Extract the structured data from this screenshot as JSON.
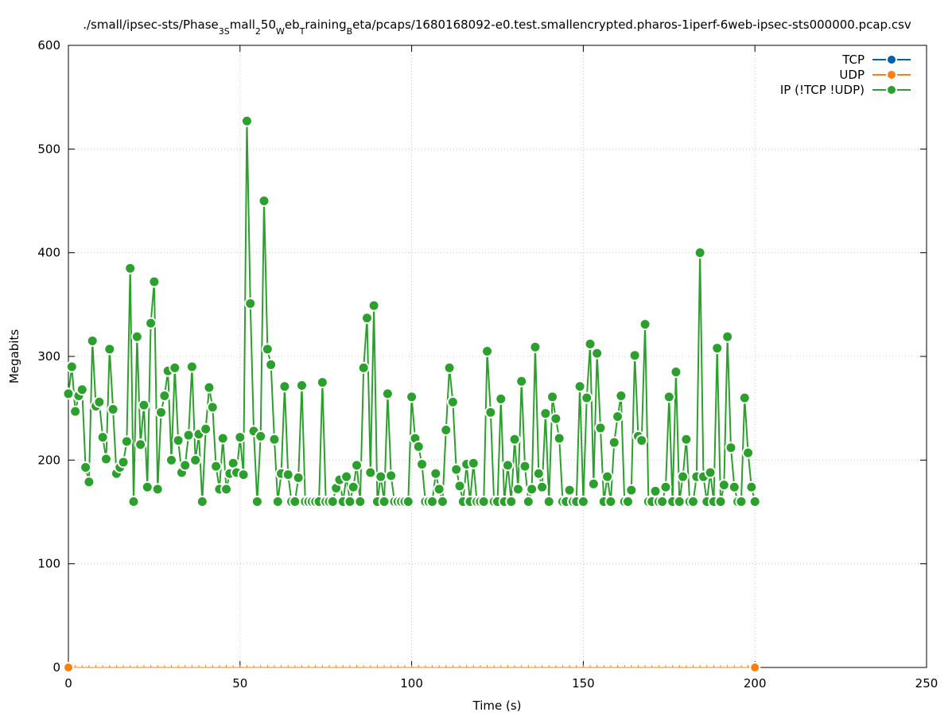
{
  "chart_data": {
    "type": "line",
    "title": "./small/ipsec-sts/Phase_3Small_250_Web_Training_Beta/pcaps/1680168092-e0.test.smallencrypted.pharos-1iperf-6web-ipsec-sts000000.pcap.csv",
    "title_parts": [
      {
        "t": "./small/ipsec-sts/Phase"
      },
      {
        "t": "3S",
        "sub": true
      },
      {
        "t": "mall"
      },
      {
        "t": "2",
        "sub": true
      },
      {
        "t": "50"
      },
      {
        "t": "W",
        "sub": true
      },
      {
        "t": "eb"
      },
      {
        "t": "T",
        "sub": true
      },
      {
        "t": "raining"
      },
      {
        "t": "B",
        "sub": true
      },
      {
        "t": "eta/pcaps/1680168092-e0.test.smallencrypted.pharos-1iperf-6web-ipsec-sts000000.pcap.csv"
      }
    ],
    "xlabel": "Time (s)",
    "ylabel": "Megabits",
    "xlim": [
      0,
      250
    ],
    "ylim": [
      0,
      600
    ],
    "xticks": [
      0,
      50,
      100,
      150,
      200,
      250
    ],
    "yticks": [
      0,
      100,
      200,
      300,
      400,
      500,
      600
    ],
    "grid": true,
    "legend": "top-right",
    "series": [
      {
        "name": "TCP",
        "color": "#0060ad",
        "points": [
          [
            0,
            0
          ],
          [
            200,
            0
          ]
        ]
      },
      {
        "name": "UDP",
        "color": "#ff7f0e",
        "points": [
          [
            0,
            0
          ],
          [
            200,
            0
          ]
        ]
      },
      {
        "name": "IP (!TCP  !UDP)",
        "color": "#2ca02c",
        "points": [
          [
            0,
            264
          ],
          [
            1,
            290
          ],
          [
            2,
            247
          ],
          [
            3,
            262
          ],
          [
            4,
            268
          ],
          [
            5,
            193
          ],
          [
            6,
            179
          ],
          [
            7,
            315
          ],
          [
            8,
            252
          ],
          [
            9,
            256
          ],
          [
            10,
            222
          ],
          [
            11,
            201
          ],
          [
            12,
            307
          ],
          [
            13,
            249
          ],
          [
            14,
            187
          ],
          [
            15,
            193
          ],
          [
            16,
            198
          ],
          [
            17,
            218
          ],
          [
            18,
            385
          ],
          [
            19,
            160
          ],
          [
            20,
            319
          ],
          [
            21,
            215
          ],
          [
            22,
            253
          ],
          [
            23,
            174
          ],
          [
            24,
            332
          ],
          [
            25,
            372
          ],
          [
            26,
            172
          ],
          [
            27,
            246
          ],
          [
            28,
            262
          ],
          [
            29,
            286
          ],
          [
            30,
            200
          ],
          [
            31,
            289
          ],
          [
            32,
            219
          ],
          [
            33,
            188
          ],
          [
            34,
            195
          ],
          [
            35,
            224
          ],
          [
            36,
            290
          ],
          [
            37,
            200
          ],
          [
            38,
            225
          ],
          [
            39,
            160
          ],
          [
            40,
            230
          ],
          [
            41,
            270
          ],
          [
            42,
            251
          ],
          [
            43,
            194
          ],
          [
            44,
            172
          ],
          [
            45,
            221
          ],
          [
            46,
            172
          ],
          [
            47,
            187
          ],
          [
            48,
            197
          ],
          [
            49,
            188
          ],
          [
            50,
            222
          ],
          [
            51,
            186
          ],
          [
            52,
            527
          ],
          [
            53,
            351
          ],
          [
            54,
            228
          ],
          [
            55,
            160
          ],
          [
            56,
            223
          ],
          [
            57,
            450
          ],
          [
            58,
            307
          ],
          [
            59,
            292
          ],
          [
            60,
            220
          ],
          [
            61,
            160
          ],
          [
            62,
            187
          ],
          [
            63,
            271
          ],
          [
            64,
            186
          ],
          [
            65,
            160
          ],
          [
            66,
            160
          ],
          [
            67,
            183
          ],
          [
            68,
            272
          ],
          [
            69,
            160
          ],
          [
            70,
            160
          ],
          [
            71,
            160
          ],
          [
            72,
            160
          ],
          [
            73,
            160
          ],
          [
            74,
            275
          ],
          [
            75,
            160
          ],
          [
            76,
            160
          ],
          [
            77,
            160
          ],
          [
            78,
            173
          ],
          [
            79,
            181
          ],
          [
            80,
            160
          ],
          [
            81,
            184
          ],
          [
            82,
            160
          ],
          [
            83,
            174
          ],
          [
            84,
            195
          ],
          [
            85,
            160
          ],
          [
            86,
            289
          ],
          [
            87,
            337
          ],
          [
            88,
            188
          ],
          [
            89,
            349
          ],
          [
            90,
            160
          ],
          [
            91,
            184
          ],
          [
            92,
            160
          ],
          [
            93,
            264
          ],
          [
            94,
            185
          ],
          [
            95,
            160
          ],
          [
            96,
            160
          ],
          [
            97,
            160
          ],
          [
            98,
            160
          ],
          [
            99,
            160
          ],
          [
            100,
            261
          ],
          [
            101,
            221
          ],
          [
            102,
            213
          ],
          [
            103,
            196
          ],
          [
            104,
            160
          ],
          [
            105,
            160
          ],
          [
            106,
            160
          ],
          [
            107,
            187
          ],
          [
            108,
            172
          ],
          [
            109,
            160
          ],
          [
            110,
            229
          ],
          [
            111,
            289
          ],
          [
            112,
            256
          ],
          [
            113,
            191
          ],
          [
            114,
            175
          ],
          [
            115,
            160
          ],
          [
            116,
            196
          ],
          [
            117,
            160
          ],
          [
            118,
            197
          ],
          [
            119,
            160
          ],
          [
            120,
            160
          ],
          [
            121,
            160
          ],
          [
            122,
            305
          ],
          [
            123,
            246
          ],
          [
            124,
            160
          ],
          [
            125,
            160
          ],
          [
            126,
            259
          ],
          [
            127,
            160
          ],
          [
            128,
            195
          ],
          [
            129,
            160
          ],
          [
            130,
            220
          ],
          [
            131,
            172
          ],
          [
            132,
            276
          ],
          [
            133,
            194
          ],
          [
            134,
            160
          ],
          [
            135,
            172
          ],
          [
            136,
            309
          ],
          [
            137,
            187
          ],
          [
            138,
            174
          ],
          [
            139,
            245
          ],
          [
            140,
            160
          ],
          [
            141,
            261
          ],
          [
            142,
            240
          ],
          [
            143,
            221
          ],
          [
            144,
            160
          ],
          [
            145,
            160
          ],
          [
            146,
            171
          ],
          [
            147,
            160
          ],
          [
            148,
            160
          ],
          [
            149,
            271
          ],
          [
            150,
            160
          ],
          [
            151,
            260
          ],
          [
            152,
            312
          ],
          [
            153,
            177
          ],
          [
            154,
            303
          ],
          [
            155,
            231
          ],
          [
            156,
            160
          ],
          [
            157,
            184
          ],
          [
            158,
            160
          ],
          [
            159,
            217
          ],
          [
            160,
            242
          ],
          [
            161,
            262
          ],
          [
            162,
            160
          ],
          [
            163,
            160
          ],
          [
            164,
            171
          ],
          [
            165,
            301
          ],
          [
            166,
            223
          ],
          [
            167,
            219
          ],
          [
            168,
            331
          ],
          [
            169,
            160
          ],
          [
            170,
            160
          ],
          [
            171,
            170
          ],
          [
            172,
            160
          ],
          [
            173,
            160
          ],
          [
            174,
            174
          ],
          [
            175,
            261
          ],
          [
            176,
            160
          ],
          [
            177,
            285
          ],
          [
            178,
            160
          ],
          [
            179,
            184
          ],
          [
            180,
            220
          ],
          [
            181,
            160
          ],
          [
            182,
            160
          ],
          [
            183,
            184
          ],
          [
            184,
            400
          ],
          [
            185,
            184
          ],
          [
            186,
            160
          ],
          [
            187,
            188
          ],
          [
            188,
            160
          ],
          [
            189,
            308
          ],
          [
            190,
            160
          ],
          [
            191,
            176
          ],
          [
            192,
            319
          ],
          [
            193,
            212
          ],
          [
            194,
            174
          ],
          [
            195,
            160
          ],
          [
            196,
            160
          ],
          [
            197,
            260
          ],
          [
            198,
            207
          ],
          [
            199,
            174
          ],
          [
            200,
            160
          ]
        ]
      }
    ]
  }
}
